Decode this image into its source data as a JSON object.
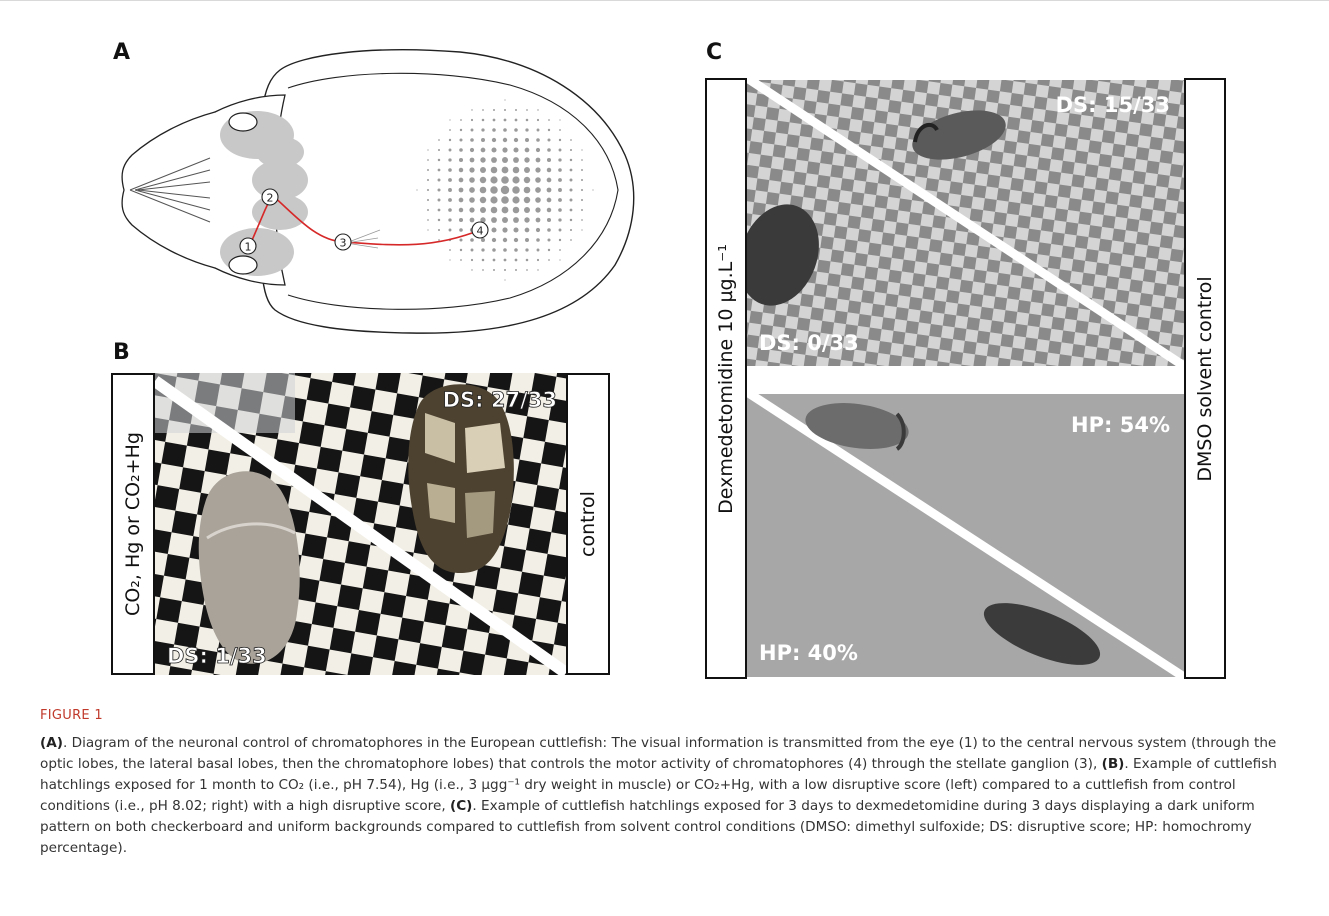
{
  "panels": {
    "a": {
      "letter": "A",
      "markers": [
        "1",
        "2",
        "3",
        "4"
      ]
    },
    "b": {
      "letter": "B",
      "left_label": "CO₂, Hg or CO₂+Hg",
      "right_label": "control",
      "score_upper": "DS: 27/33",
      "score_lower": "DS: 1/33"
    },
    "c": {
      "letter": "C",
      "left_label": "Dexmedetomidine 10 µg.L⁻¹",
      "right_label": "DMSO solvent control",
      "top_score_right": "DS: 15/33",
      "top_score_left": "DS: 0/33",
      "bottom_score_right": "HP: 54%",
      "bottom_score_left": "HP: 40%"
    }
  },
  "figure": {
    "title": "FIGURE 1",
    "caption": {
      "a_ref": "(A)",
      "part1": ". Diagram of the neuronal control of chromatophores in the European cuttlefish: The visual information is transmitted from the eye (1) to the central nervous system (through the optic lobes, the lateral basal lobes, then the chromatophore lobes) that controls the motor activity of chromatophores (4) through the stellate ganglion (3), ",
      "b_ref": "(B)",
      "part2": ". Example of cuttlefish hatchlings exposed for 1 month to CO₂ (i.e., pH 7.54), Hg (i.e., 3 µgg⁻¹ dry weight in muscle) or CO₂+Hg, with a low disruptive score (left) compared to a cuttlefish from control conditions (i.e., pH 8.02; right) with a high disruptive score, ",
      "c_ref": "(C)",
      "part3": ". Example of cuttlefish hatchlings exposed for 3 days to dexmedetomidine during 3 days displaying a dark uniform pattern on both checkerboard and uniform backgrounds compared to cuttlefish from solvent control conditions (DMSO: dimethyl sulfoxide; DS: disruptive score; HP: homochromy percentage)."
    }
  }
}
